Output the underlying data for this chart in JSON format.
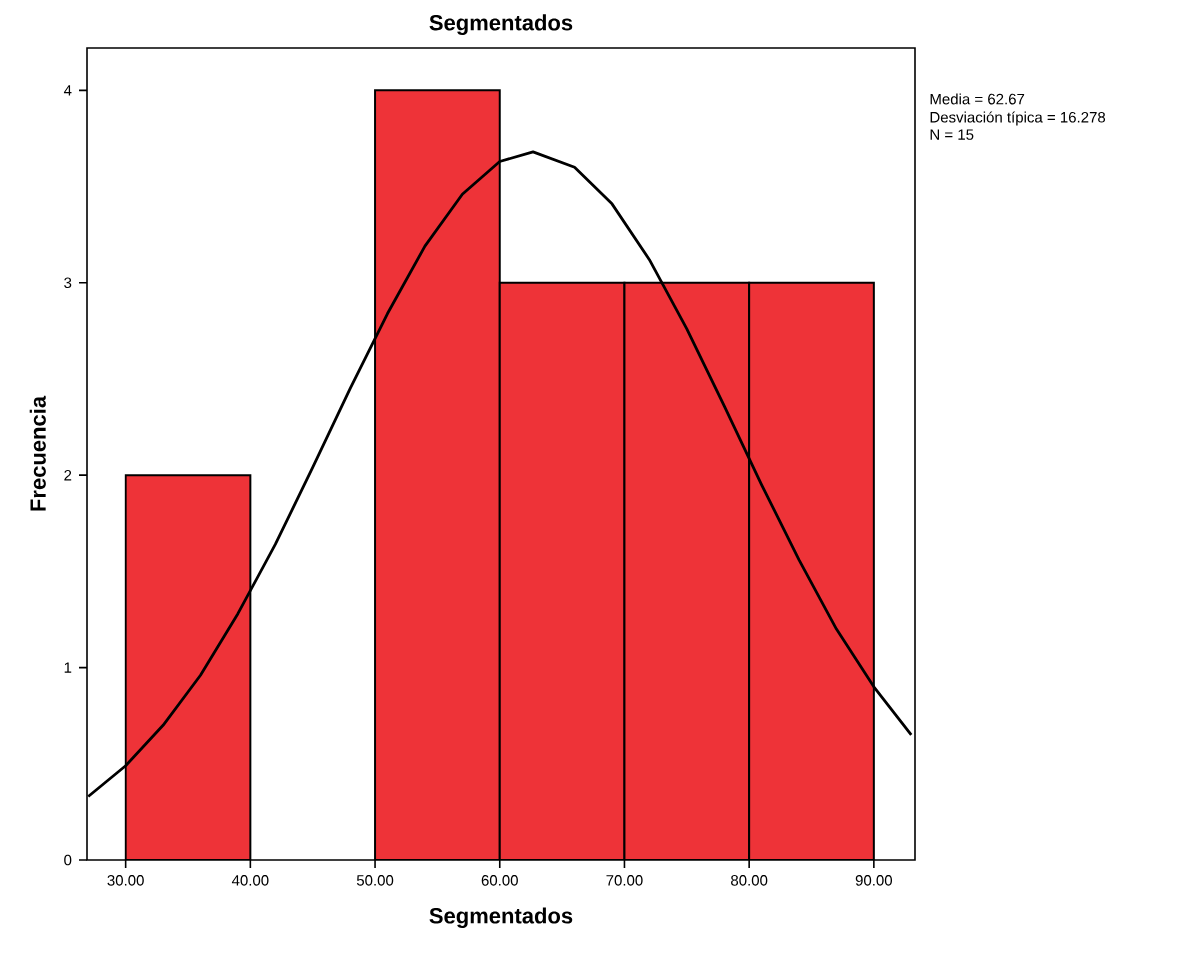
{
  "chart_data": {
    "type": "histogram",
    "title": "Segmentados",
    "xlabel": "Segmentados",
    "ylabel": "Frecuencia",
    "xlim": [
      26.9,
      93.3
    ],
    "ylim": [
      0,
      4.22
    ],
    "xticks": [
      {
        "value": 30,
        "label": "30.00"
      },
      {
        "value": 40,
        "label": "40.00"
      },
      {
        "value": 50,
        "label": "50.00"
      },
      {
        "value": 60,
        "label": "60.00"
      },
      {
        "value": 70,
        "label": "70.00"
      },
      {
        "value": 80,
        "label": "80.00"
      },
      {
        "value": 90,
        "label": "90.00"
      }
    ],
    "yticks": [
      0,
      1,
      2,
      3,
      4
    ],
    "series": [
      {
        "type": "histogram",
        "color": "#ee3338",
        "bins": [
          30,
          40,
          50,
          60,
          70,
          80,
          90
        ],
        "values": [
          2,
          0,
          4,
          3,
          3,
          3
        ]
      },
      {
        "type": "line",
        "color": "#000000",
        "x": [
          27,
          30,
          33,
          36,
          39,
          42,
          45,
          48,
          51,
          54,
          57,
          60,
          62.67,
          66,
          69,
          72,
          75,
          78,
          81,
          84,
          87,
          90,
          93
        ],
        "values": [
          0.33,
          0.49,
          0.7,
          0.96,
          1.28,
          1.64,
          2.04,
          2.45,
          2.84,
          3.19,
          3.46,
          3.63,
          3.68,
          3.6,
          3.41,
          3.12,
          2.76,
          2.36,
          1.95,
          1.56,
          1.2,
          0.9,
          0.65
        ]
      }
    ],
    "annotations": [
      "Media = 62.67",
      "Desviación típica = 16.278",
      "N = 15"
    ]
  }
}
